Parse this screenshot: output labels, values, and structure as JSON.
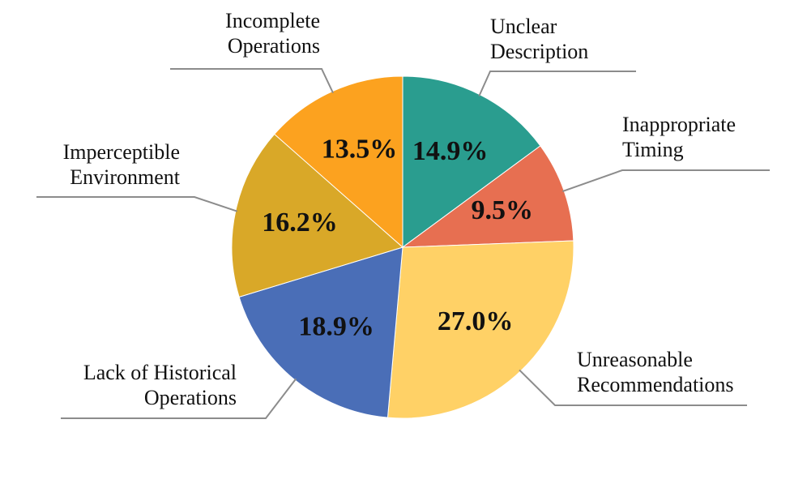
{
  "chart_data": {
    "type": "pie",
    "categories": [
      [
        "Unclear",
        "Description"
      ],
      [
        "Inappropriate",
        "Timing"
      ],
      [
        "Unreasonable",
        "Recommendations"
      ],
      [
        "Lack of Historical",
        "Operations"
      ],
      [
        "Imperceptible",
        "Environment"
      ],
      [
        "Incomplete",
        "Operations"
      ]
    ],
    "values": [
      14.9,
      9.5,
      27.0,
      18.9,
      16.2,
      13.5
    ],
    "value_labels": [
      "14.9%",
      "9.5%",
      "27.0%",
      "18.9%",
      "16.2%",
      "13.5%"
    ],
    "colors": [
      "#2a9d8f",
      "#e76f51",
      "#ffd166",
      "#4a6eb7",
      "#d9a828",
      "#fca21f"
    ]
  }
}
